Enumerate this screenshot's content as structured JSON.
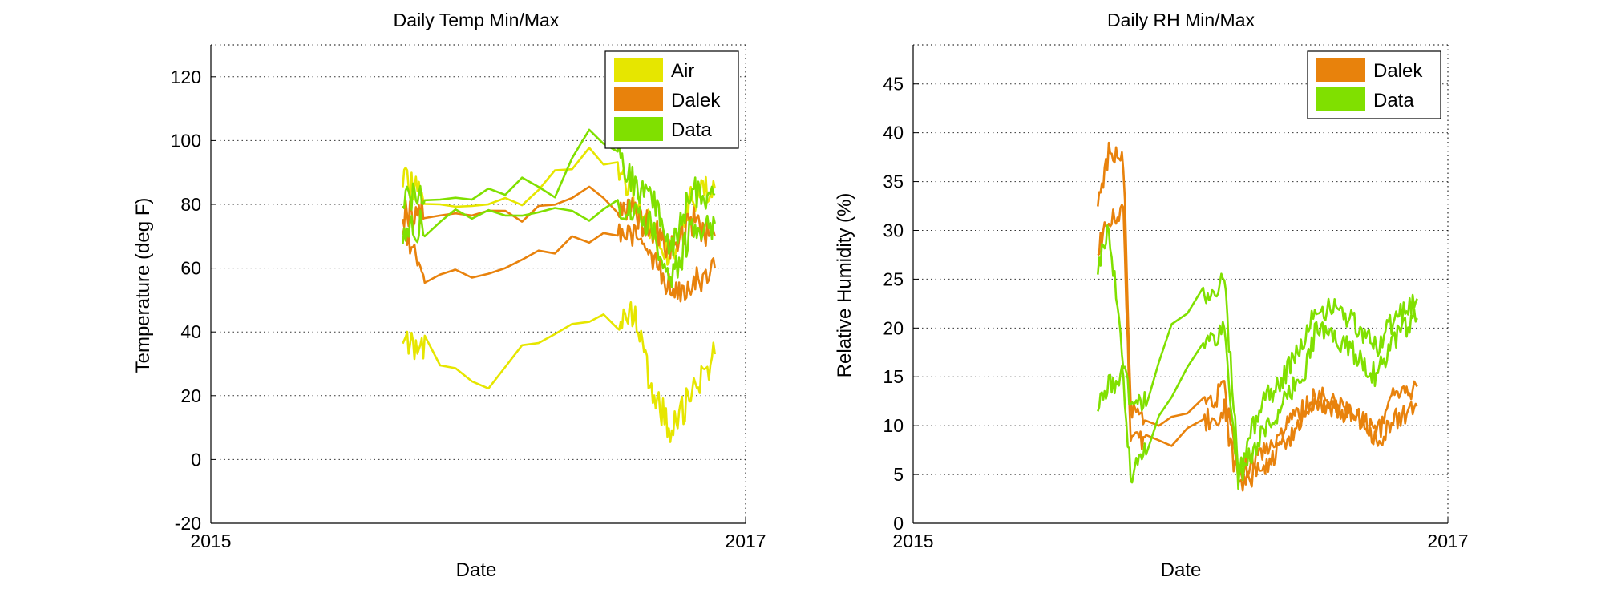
{
  "chart_data": [
    {
      "type": "line",
      "title": "Daily Temp Min/Max",
      "xlabel": "Date",
      "ylabel": "Temperature (deg F)",
      "xlim": [
        "2015",
        "2017"
      ],
      "ylim": [
        -20,
        130
      ],
      "x_ticks": [
        "2015",
        "2017"
      ],
      "y_ticks": [
        -20,
        0,
        20,
        40,
        60,
        80,
        100,
        120
      ],
      "grid": true,
      "legend": "top-right",
      "series": [
        {
          "name": "Air",
          "color": "#e6e600",
          "x": [
            "2015-09-20",
            "2015-10-20",
            "2015-12-01",
            "2016-01-15",
            "2016-03-01",
            "2016-04-15",
            "2016-06-01",
            "2016-07-10",
            "2016-08-01",
            "2016-08-25",
            "2016-09-20",
            "2016-10-20",
            "2016-11-20"
          ],
          "min": [
            39,
            34,
            25,
            24,
            34,
            39,
            46,
            45,
            45,
            22,
            10,
            20,
            33
          ],
          "max": [
            88,
            82,
            78,
            81,
            83,
            86,
            96,
            89,
            83,
            72,
            64,
            82,
            85
          ]
        },
        {
          "name": "Dalek",
          "color": "#e8820c",
          "x": [
            "2015-09-20",
            "2015-10-20",
            "2015-12-01",
            "2016-01-15",
            "2016-03-01",
            "2016-04-15",
            "2016-06-01",
            "2016-07-10",
            "2016-08-01",
            "2016-08-25",
            "2016-09-20",
            "2016-10-20",
            "2016-11-20"
          ],
          "min": [
            73,
            60,
            56,
            58,
            62,
            69,
            71,
            71,
            70,
            64,
            53,
            56,
            60
          ],
          "max": [
            78,
            77,
            76,
            77,
            79,
            80,
            84,
            80,
            77,
            72,
            66,
            75,
            70
          ]
        },
        {
          "name": "Data",
          "color": "#80e000",
          "x": [
            "2015-09-20",
            "2015-10-20",
            "2015-12-01",
            "2016-01-15",
            "2016-03-01",
            "2016-04-15",
            "2016-06-01",
            "2016-07-10",
            "2016-08-01",
            "2016-08-25",
            "2016-09-20",
            "2016-10-20",
            "2016-11-20"
          ],
          "min": [
            70,
            74,
            75,
            76,
            77,
            78,
            78,
            79,
            78,
            74,
            55,
            72,
            74
          ],
          "max": [
            82,
            82,
            81,
            82,
            84,
            87,
            102,
            96,
            86,
            84,
            65,
            84,
            83
          ]
        }
      ]
    },
    {
      "type": "line",
      "title": "Daily RH Min/Max",
      "xlabel": "Date",
      "ylabel": "Relative Humidity (%)",
      "xlim": [
        "2015",
        "2017"
      ],
      "ylim": [
        0,
        49
      ],
      "x_ticks": [
        "2015",
        "2017"
      ],
      "y_ticks": [
        0,
        5,
        10,
        15,
        20,
        25,
        30,
        35,
        40,
        45
      ],
      "grid": true,
      "legend": "top-right",
      "series": [
        {
          "name": "Dalek",
          "color": "#e8820c",
          "x": [
            "2015-09-10",
            "2015-09-25",
            "2015-10-15",
            "2015-10-25",
            "2015-11-15",
            "2015-12-20",
            "2016-02-01",
            "2016-03-01",
            "2016-03-20",
            "2016-04-20",
            "2016-05-20",
            "2016-06-20",
            "2016-07-05",
            "2016-08-01",
            "2016-09-01",
            "2016-09-25",
            "2016-10-20",
            "2016-11-20"
          ],
          "min": [
            28,
            31,
            32,
            9,
            8,
            9,
            10.5,
            11.5,
            4,
            5.5,
            8,
            10.5,
            12,
            12,
            10.5,
            8,
            10.5,
            12
          ],
          "max": [
            33,
            38,
            37,
            12,
            9.5,
            10.5,
            12,
            13.5,
            5,
            7,
            9.5,
            12,
            13,
            12.5,
            11,
            9,
            13,
            14
          ]
        },
        {
          "name": "Data",
          "color": "#80e000",
          "x": [
            "2015-09-10",
            "2015-09-25",
            "2015-10-15",
            "2015-10-25",
            "2015-11-15",
            "2015-12-20",
            "2016-02-01",
            "2016-03-01",
            "2016-03-20",
            "2016-04-20",
            "2016-05-20",
            "2016-06-20",
            "2016-07-05",
            "2016-08-01",
            "2016-09-01",
            "2016-09-25",
            "2016-10-20",
            "2016-11-20"
          ],
          "min": [
            12,
            14,
            15,
            5,
            8,
            14,
            18,
            20,
            4.5,
            9,
            12,
            16,
            20,
            19,
            17,
            15,
            19,
            21
          ],
          "max": [
            26,
            30,
            17,
            12,
            13,
            20,
            23,
            25,
            5.5,
            12,
            15,
            19,
            22,
            22,
            20,
            18,
            21,
            23
          ]
        }
      ]
    }
  ]
}
